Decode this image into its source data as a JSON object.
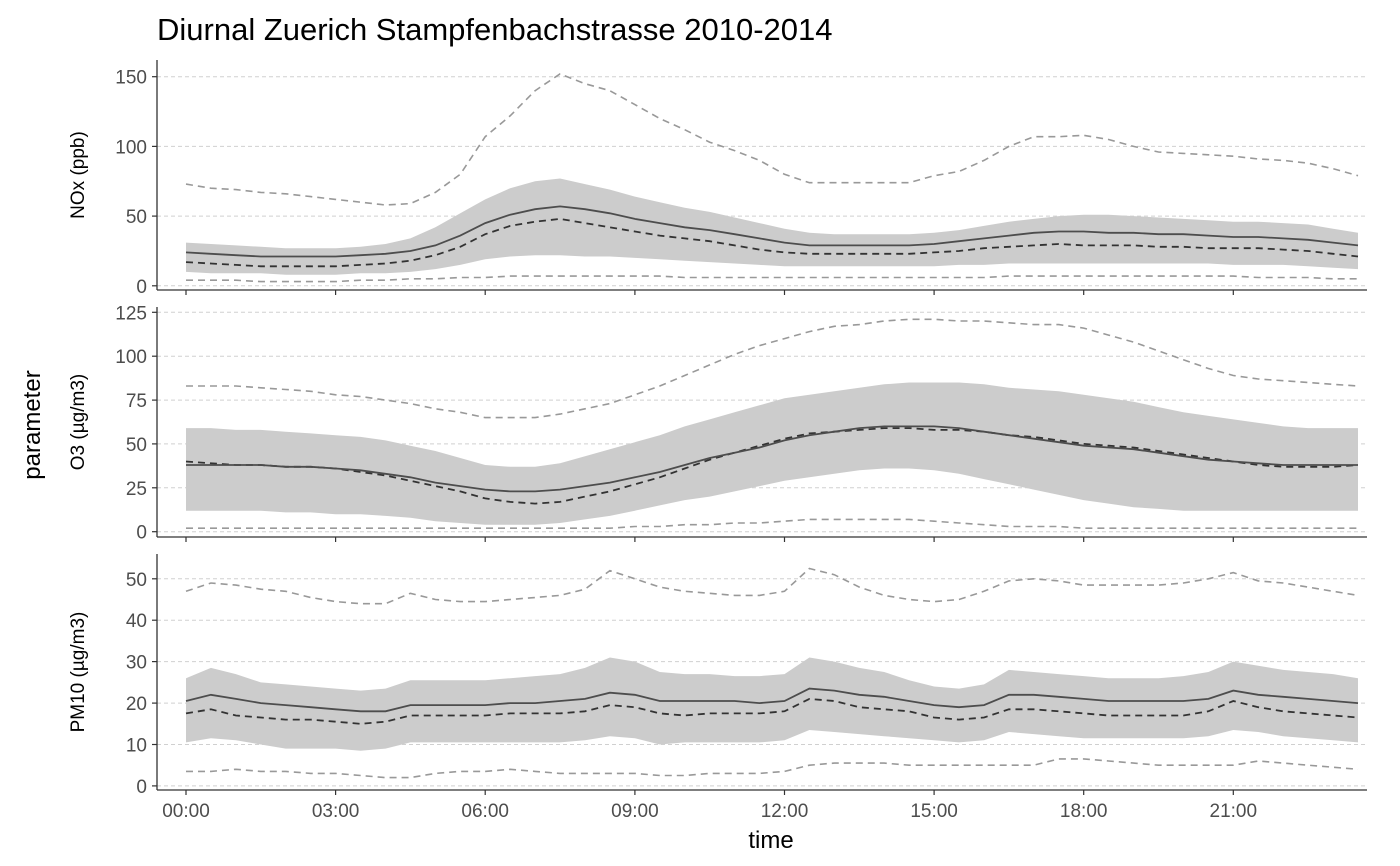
{
  "chart_data": {
    "type": "area",
    "title": "Diurnal Zuerich Stampfenbachstrasse 2010-2014",
    "xlabel": "time",
    "ylabel": "parameter",
    "x_tick_labels": [
      "00:00",
      "03:00",
      "06:00",
      "09:00",
      "12:00",
      "15:00",
      "18:00",
      "21:00"
    ],
    "x_hours": [
      0,
      0.5,
      1,
      1.5,
      2,
      2.5,
      3,
      3.5,
      4,
      4.5,
      5,
      5.5,
      6,
      6.5,
      7,
      7.5,
      8,
      8.5,
      9,
      9.5,
      10,
      10.5,
      11,
      11.5,
      12,
      12.5,
      13,
      13.5,
      14,
      14.5,
      15,
      15.5,
      16,
      16.5,
      17,
      17.5,
      18,
      18.5,
      19,
      19.5,
      20,
      20.5,
      21,
      21.5,
      22,
      22.5,
      23,
      23.5
    ],
    "xlim": [
      0,
      23.5
    ],
    "grid": "horizontal dashed",
    "colors": {
      "band": "#cccccc",
      "mean": "#4d4d4d",
      "median": "#333333",
      "extreme": "#999999",
      "grid": "#d0d0d0",
      "axis": "#333333"
    },
    "series_roles": [
      "band (shaded range)",
      "mean (solid)",
      "median (dashed)",
      "min/max (dashed light)"
    ],
    "panels": [
      {
        "ylabel": "NOx (ppb)",
        "ylim": [
          -3,
          162
        ],
        "yticks": [
          0,
          50,
          100,
          150
        ],
        "mean": [
          24,
          23,
          22,
          21,
          21,
          21,
          21,
          22,
          23,
          25,
          29,
          36,
          45,
          51,
          55,
          57,
          55,
          52,
          48,
          45,
          42,
          40,
          37,
          34,
          31,
          29,
          29,
          29,
          29,
          29,
          30,
          32,
          34,
          36,
          38,
          39,
          39,
          38,
          38,
          37,
          37,
          36,
          35,
          35,
          34,
          33,
          31,
          29
        ],
        "median": [
          17,
          16,
          15,
          14,
          14,
          14,
          14,
          15,
          16,
          18,
          22,
          28,
          37,
          43,
          46,
          48,
          45,
          42,
          39,
          36,
          34,
          32,
          29,
          26,
          24,
          23,
          23,
          23,
          23,
          23,
          24,
          25,
          27,
          28,
          29,
          30,
          29,
          29,
          29,
          28,
          28,
          27,
          27,
          27,
          26,
          25,
          23,
          21
        ],
        "band_low": [
          10,
          9,
          9,
          9,
          8,
          8,
          8,
          9,
          9,
          10,
          12,
          15,
          19,
          21,
          22,
          22,
          21,
          21,
          20,
          19,
          18,
          17,
          16,
          15,
          14,
          14,
          14,
          14,
          14,
          14,
          14,
          15,
          15,
          16,
          16,
          16,
          16,
          16,
          16,
          16,
          16,
          16,
          15,
          15,
          15,
          14,
          13,
          12
        ],
        "band_high": [
          31,
          30,
          29,
          28,
          27,
          27,
          27,
          28,
          30,
          34,
          42,
          52,
          62,
          70,
          75,
          77,
          73,
          69,
          64,
          60,
          56,
          53,
          49,
          45,
          41,
          38,
          37,
          37,
          37,
          37,
          38,
          40,
          43,
          46,
          48,
          50,
          51,
          51,
          50,
          49,
          48,
          47,
          46,
          46,
          45,
          44,
          41,
          38
        ],
        "low": [
          4,
          4,
          4,
          3,
          3,
          3,
          3,
          4,
          4,
          5,
          5,
          6,
          6,
          7,
          7,
          7,
          7,
          7,
          7,
          7,
          6,
          6,
          6,
          6,
          6,
          6,
          6,
          6,
          6,
          6,
          6,
          6,
          6,
          7,
          7,
          7,
          7,
          7,
          7,
          7,
          7,
          7,
          7,
          6,
          6,
          6,
          5,
          5
        ],
        "high": [
          73,
          70,
          69,
          67,
          66,
          64,
          62,
          60,
          58,
          59,
          67,
          80,
          107,
          122,
          140,
          152,
          145,
          140,
          130,
          120,
          112,
          103,
          97,
          90,
          80,
          74,
          74,
          74,
          74,
          74,
          79,
          82,
          90,
          100,
          107,
          107,
          108,
          105,
          100,
          96,
          95,
          94,
          93,
          91,
          90,
          88,
          84,
          79
        ]
      },
      {
        "ylabel": "O3 (µg/m3)",
        "ylim": [
          -3,
          128
        ],
        "yticks": [
          0,
          25,
          50,
          75,
          100,
          125
        ],
        "mean": [
          38,
          38,
          38,
          38,
          37,
          37,
          36,
          35,
          33,
          31,
          28,
          26,
          24,
          23,
          23,
          24,
          26,
          28,
          31,
          34,
          38,
          42,
          45,
          48,
          52,
          55,
          57,
          59,
          60,
          60,
          60,
          59,
          57,
          55,
          53,
          51,
          49,
          48,
          47,
          45,
          43,
          41,
          40,
          39,
          38,
          38,
          38,
          38
        ],
        "median": [
          40,
          39,
          38,
          38,
          37,
          37,
          36,
          34,
          32,
          29,
          26,
          23,
          19,
          17,
          16,
          17,
          20,
          23,
          27,
          31,
          36,
          41,
          45,
          49,
          53,
          56,
          57,
          58,
          59,
          59,
          58,
          58,
          57,
          55,
          54,
          52,
          50,
          49,
          48,
          46,
          44,
          42,
          40,
          38,
          37,
          37,
          37,
          38
        ],
        "band_low": [
          12,
          12,
          12,
          12,
          11,
          11,
          10,
          10,
          9,
          8,
          6,
          5,
          4,
          4,
          4,
          5,
          7,
          9,
          12,
          15,
          18,
          20,
          23,
          26,
          29,
          31,
          33,
          35,
          36,
          36,
          35,
          33,
          30,
          27,
          24,
          21,
          18,
          16,
          14,
          13,
          12,
          12,
          12,
          12,
          12,
          12,
          12,
          12
        ],
        "band_high": [
          59,
          59,
          58,
          58,
          57,
          56,
          55,
          54,
          52,
          49,
          46,
          42,
          38,
          37,
          37,
          39,
          43,
          47,
          51,
          55,
          60,
          64,
          68,
          72,
          76,
          78,
          80,
          82,
          84,
          85,
          85,
          85,
          84,
          82,
          81,
          80,
          78,
          76,
          74,
          71,
          68,
          66,
          64,
          62,
          60,
          59,
          59,
          59
        ],
        "low": [
          2,
          2,
          2,
          2,
          2,
          2,
          2,
          2,
          2,
          2,
          2,
          2,
          2,
          2,
          2,
          2,
          2,
          2,
          3,
          3,
          4,
          4,
          5,
          5,
          6,
          7,
          7,
          7,
          7,
          7,
          6,
          5,
          4,
          3,
          3,
          3,
          2,
          2,
          2,
          2,
          2,
          2,
          2,
          2,
          2,
          2,
          2,
          2
        ],
        "high": [
          83,
          83,
          83,
          82,
          81,
          80,
          78,
          77,
          75,
          73,
          70,
          68,
          65,
          65,
          65,
          67,
          70,
          73,
          78,
          83,
          89,
          95,
          101,
          106,
          110,
          114,
          117,
          118,
          120,
          121,
          121,
          120,
          120,
          119,
          118,
          118,
          116,
          112,
          108,
          103,
          98,
          93,
          89,
          87,
          86,
          85,
          84,
          83
        ]
      },
      {
        "ylabel": "PM10 (µg/m3)",
        "ylim": [
          -1,
          56
        ],
        "yticks": [
          0,
          10,
          20,
          30,
          40,
          50
        ],
        "mean": [
          20.5,
          22,
          21,
          20,
          19.5,
          19,
          18.5,
          18,
          18,
          19.5,
          19.5,
          19.5,
          19.5,
          20,
          20,
          20.5,
          21,
          22.5,
          22,
          20.5,
          20.5,
          20.5,
          20.5,
          20,
          20.5,
          23.5,
          23,
          22,
          21.5,
          20.5,
          19.5,
          19,
          19.5,
          22,
          22,
          21.5,
          21,
          20.5,
          20.5,
          20.5,
          20.5,
          21,
          23,
          22,
          21.5,
          21,
          20.5,
          20
        ],
        "median": [
          17.5,
          18.5,
          17,
          16.5,
          16,
          16,
          15.5,
          15,
          15.5,
          17,
          17,
          17,
          17,
          17.5,
          17.5,
          17.5,
          18,
          19.5,
          19,
          17.5,
          17,
          17.5,
          17.5,
          17.5,
          18,
          21,
          20.5,
          19,
          18.5,
          18,
          16.5,
          16,
          16.5,
          18.5,
          18.5,
          18,
          17.5,
          17,
          17,
          17,
          17,
          18,
          20.5,
          19,
          18,
          17.5,
          17,
          16.5
        ],
        "band_low": [
          10.5,
          11.5,
          11,
          10,
          9,
          9,
          9,
          8.5,
          9,
          10.5,
          10.5,
          10.5,
          10.5,
          10.5,
          10.5,
          10.5,
          11,
          12,
          11.5,
          10,
          10.5,
          10.5,
          10.5,
          10.5,
          11,
          13.5,
          13,
          12.5,
          12,
          11.5,
          11,
          10.5,
          11,
          13,
          12.5,
          12,
          11.5,
          11.5,
          11.5,
          11.5,
          11.5,
          12,
          13.5,
          13,
          12,
          11.5,
          11,
          10.5
        ],
        "band_high": [
          26,
          28.5,
          27,
          25,
          24.5,
          24,
          23.5,
          23,
          23.5,
          25.5,
          25.5,
          25.5,
          25.5,
          26,
          26.5,
          27,
          28.5,
          31,
          30,
          27.5,
          27,
          27,
          26.5,
          26.5,
          27,
          31,
          30,
          28.5,
          27.5,
          25.5,
          24,
          23.5,
          24.5,
          28,
          27.5,
          27,
          26.5,
          26,
          26,
          26,
          26.5,
          27.5,
          30,
          29,
          28,
          27.5,
          27,
          26
        ],
        "low": [
          3.5,
          3.5,
          4,
          3.5,
          3.5,
          3,
          3,
          2.5,
          2,
          2,
          3,
          3.5,
          3.5,
          4,
          3.5,
          3,
          3,
          3,
          3,
          2.5,
          2.5,
          3,
          3,
          3,
          3.5,
          5,
          5.5,
          5.5,
          5.5,
          5,
          5,
          5,
          5,
          5,
          5,
          6.5,
          6.5,
          6,
          5.5,
          5,
          5,
          5,
          5,
          6,
          5.5,
          5,
          4.5,
          4
        ],
        "high": [
          47,
          49,
          48.5,
          47.5,
          47,
          45.5,
          44.5,
          44,
          44,
          46.5,
          45,
          44.5,
          44.5,
          45,
          45.5,
          46,
          47.5,
          52,
          50,
          48,
          47,
          46.5,
          46,
          46,
          47,
          52.5,
          51,
          48,
          46,
          45,
          44.5,
          45,
          47,
          49.5,
          50,
          49.5,
          48.5,
          48.5,
          48.5,
          48.5,
          49,
          50,
          51.5,
          49.5,
          49,
          48,
          47,
          46
        ]
      }
    ]
  }
}
